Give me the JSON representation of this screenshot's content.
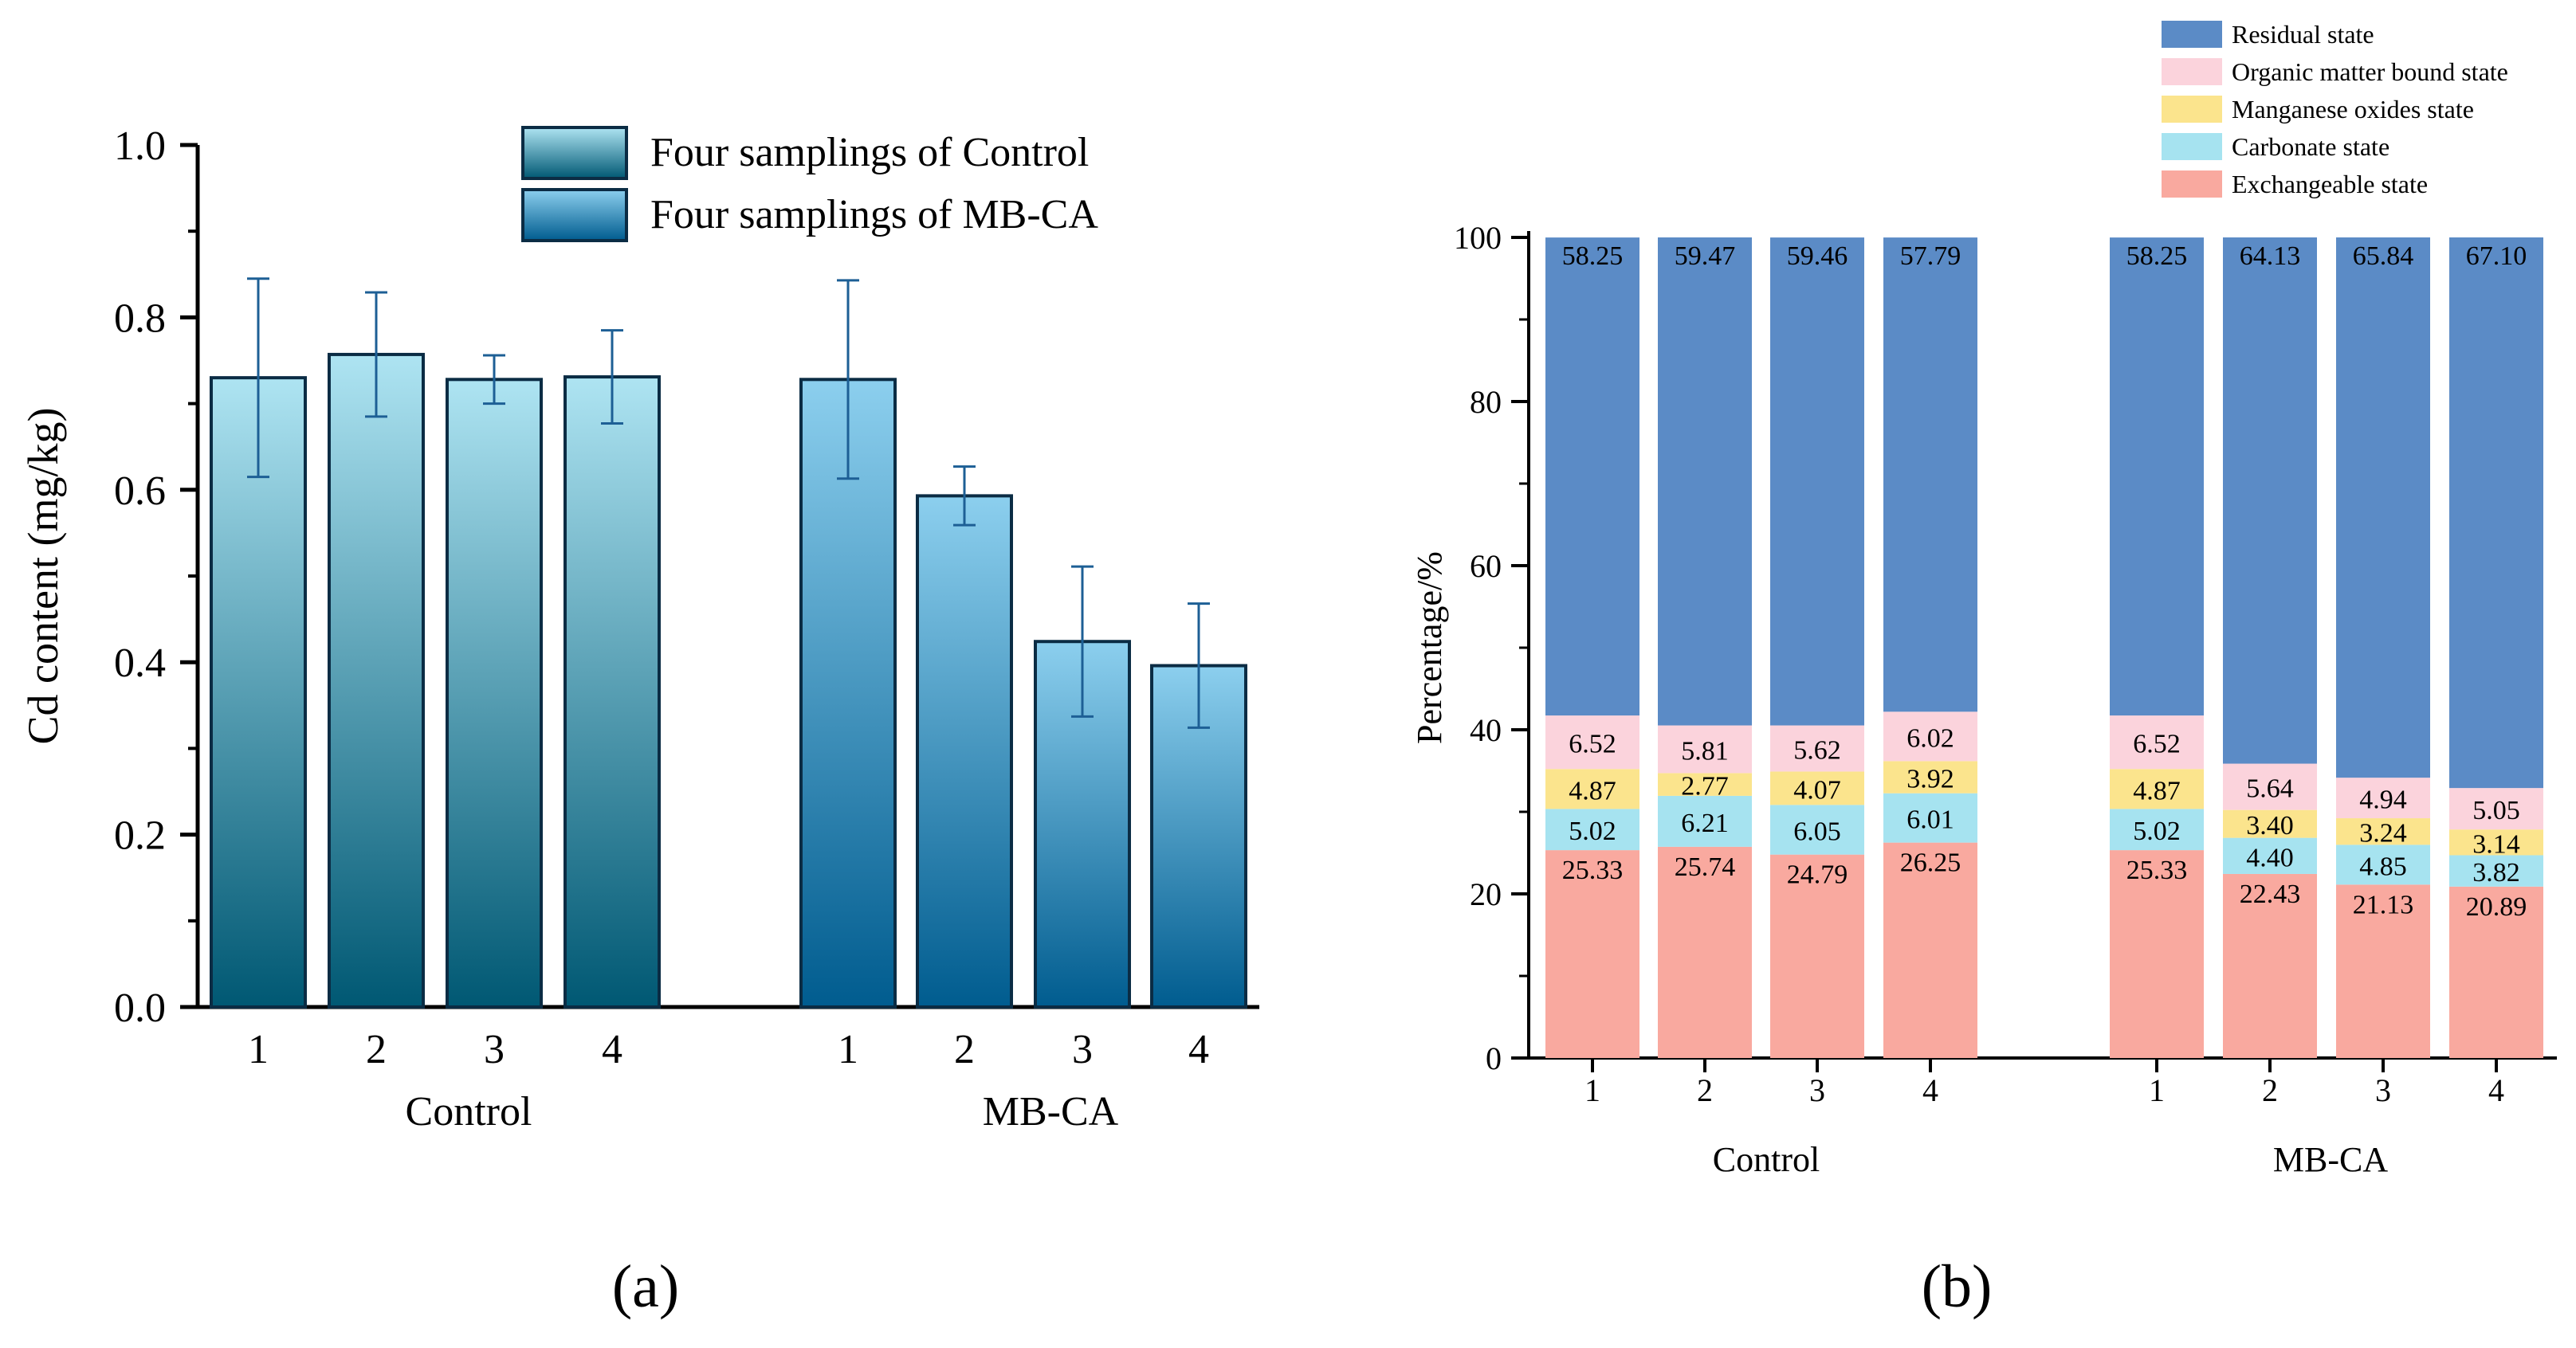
{
  "panels": {
    "a_label": "(a)",
    "b_label": "(b)"
  },
  "chart_data": [
    {
      "id": "a",
      "type": "bar",
      "title": "",
      "xlabel": "",
      "ylabel": "Cd content (mg/kg)",
      "ylim": [
        0,
        1.0
      ],
      "yticks": [
        0.0,
        0.2,
        0.4,
        0.6,
        0.8,
        1.0
      ],
      "ytick_labels": [
        "0.0",
        "0.2",
        "0.4",
        "0.6",
        "0.8",
        "1.0"
      ],
      "groups": [
        "Control",
        "MB-CA"
      ],
      "categories": [
        "1",
        "2",
        "3",
        "4"
      ],
      "series": [
        {
          "name": "Four samplings of Control",
          "group": "Control",
          "values": [
            0.73,
            0.757,
            0.728,
            0.731
          ],
          "errors": [
            0.115,
            0.072,
            0.028,
            0.054
          ],
          "color_top": "#aee4f2",
          "color_bottom": "#005873"
        },
        {
          "name": "Four samplings of MB-CA",
          "group": "MB-CA",
          "values": [
            0.728,
            0.593,
            0.424,
            0.396
          ],
          "errors": [
            0.115,
            0.034,
            0.087,
            0.072
          ],
          "color_top": "#8ccfee",
          "color_bottom": "#005c8f"
        }
      ],
      "legend_position": "top-right"
    },
    {
      "id": "b",
      "type": "bar",
      "stacked": true,
      "title": "",
      "xlabel": "",
      "ylabel": "Percentage/%",
      "ylim": [
        0,
        100
      ],
      "yticks": [
        0,
        20,
        40,
        60,
        80,
        100
      ],
      "groups": [
        "Control",
        "MB-CA"
      ],
      "categories": [
        "1",
        "2",
        "3",
        "4"
      ],
      "series": [
        {
          "name": "Exchangeable state",
          "color": "#f9a99f",
          "values": {
            "Control": [
              25.33,
              25.74,
              24.79,
              26.25
            ],
            "MB-CA": [
              25.33,
              22.43,
              21.13,
              20.89
            ]
          }
        },
        {
          "name": "Carbonate state",
          "color": "#a6e3f0",
          "values": {
            "Control": [
              5.02,
              6.21,
              6.05,
              6.01
            ],
            "MB-CA": [
              5.02,
              4.4,
              4.85,
              3.82
            ]
          }
        },
        {
          "name": "Manganese oxides state",
          "color": "#fbe48d",
          "values": {
            "Control": [
              4.87,
              2.77,
              4.07,
              3.92
            ],
            "MB-CA": [
              4.87,
              3.4,
              3.24,
              3.14
            ]
          }
        },
        {
          "name": "Organic matter bound state",
          "color": "#fbd3dc",
          "values": {
            "Control": [
              6.52,
              5.81,
              5.62,
              6.02
            ],
            "MB-CA": [
              6.52,
              5.64,
              4.94,
              5.05
            ]
          }
        },
        {
          "name": "Residual state",
          "color": "#5b8bc6",
          "values": {
            "Control": [
              58.25,
              59.47,
              59.46,
              57.79
            ],
            "MB-CA": [
              58.25,
              64.13,
              65.84,
              67.1
            ]
          }
        }
      ],
      "data_labels": {
        "Control": {
          "Exchangeable state": [
            "25.33",
            "25.74",
            "24.79",
            "26.25"
          ],
          "Carbonate state": [
            "5.02",
            "6.21",
            "6.05",
            "6.01"
          ],
          "Manganese oxides state": [
            "4.87",
            "2.77",
            "4.07",
            "3.92"
          ],
          "Organic matter bound state": [
            "6.52",
            "5.81",
            "5.62",
            "6.02"
          ],
          "Residual state": [
            "58.25",
            "59.47",
            "59.46",
            "57.79"
          ]
        },
        "MB-CA": {
          "Exchangeable state": [
            "25.33",
            "22.43",
            "21.13",
            "20.89"
          ],
          "Carbonate state": [
            "5.02",
            "4.40",
            "4.85",
            "3.82"
          ],
          "Manganese oxides state": [
            "4.87",
            "3.40",
            "3.24",
            "3.14"
          ],
          "Organic matter bound state": [
            "6.52",
            "5.64",
            "4.94",
            "5.05"
          ],
          "Residual state": [
            "58.25",
            "64.13",
            "65.84",
            "67.10"
          ]
        }
      },
      "legend_order": [
        "Residual state",
        "Organic matter bound state",
        "Manganese oxides state",
        "Carbonate state",
        "Exchangeable state"
      ],
      "legend_position": "top-right"
    }
  ]
}
